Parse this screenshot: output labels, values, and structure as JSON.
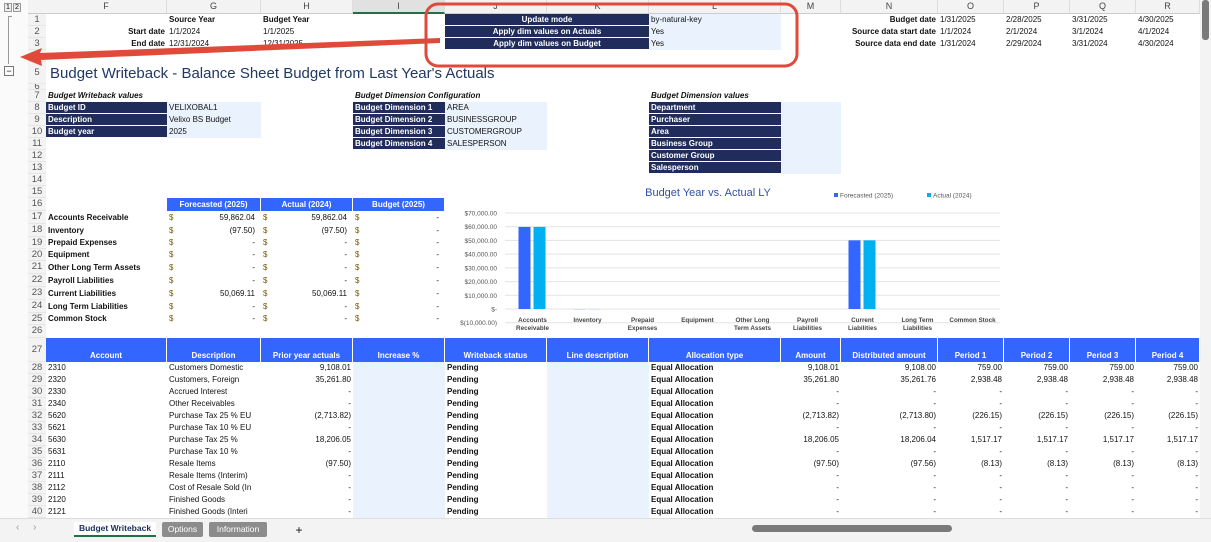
{
  "columns": [
    "F",
    "G",
    "H",
    "I",
    "J",
    "K",
    "L",
    "M",
    "N",
    "O",
    "P",
    "Q",
    "R"
  ],
  "outline": {
    "levels": [
      "1",
      "2"
    ],
    "collapse": "−"
  },
  "dates": {
    "source_year_label": "Source Year",
    "budget_year_label": "Budget Year",
    "start_label": "Start date",
    "end_label": "End date",
    "source_start": "1/1/2024",
    "budget_start": "1/1/2025",
    "source_end": "12/31/2024",
    "budget_end": "12/31/2025"
  },
  "settings": [
    {
      "label": "Update mode",
      "value": "by-natural-key"
    },
    {
      "label": "Apply dim values on Actuals",
      "value": "Yes"
    },
    {
      "label": "Apply dim values on Budget",
      "value": "Yes"
    }
  ],
  "periods": {
    "labels": [
      "Budget date",
      "Source data start date",
      "Source data end date"
    ],
    "values": [
      [
        "1/31/2025",
        "2/28/2025",
        "3/31/2025",
        "4/30/2025"
      ],
      [
        "1/1/2024",
        "2/1/2024",
        "3/1/2024",
        "4/1/2024"
      ],
      [
        "1/31/2024",
        "2/29/2024",
        "3/31/2024",
        "4/30/2024"
      ]
    ]
  },
  "page_title": "Budget Writeback - Balance Sheet Budget from Last Year's Actuals",
  "writeback_values": {
    "heading": "Budget Writeback values",
    "items": [
      {
        "label": "Budget ID",
        "value": "VELIXOBAL1"
      },
      {
        "label": "Description",
        "value": "Velixo BS Budget"
      },
      {
        "label": "Budget year",
        "value": "2025"
      }
    ]
  },
  "dimension_config": {
    "heading": "Budget Dimension Configuration",
    "items": [
      {
        "label": "Budget Dimension 1",
        "value": "AREA"
      },
      {
        "label": "Budget Dimension 2",
        "value": "BUSINESSGROUP"
      },
      {
        "label": "Budget Dimension 3",
        "value": "CUSTOMERGROUP"
      },
      {
        "label": "Budget Dimension 4",
        "value": "SALESPERSON"
      }
    ]
  },
  "dimension_values": {
    "heading": "Budget Dimension values",
    "items": [
      {
        "label": "Department",
        "value": ""
      },
      {
        "label": "Purchaser",
        "value": ""
      },
      {
        "label": "Area",
        "value": ""
      },
      {
        "label": "Business Group",
        "value": ""
      },
      {
        "label": "Customer Group",
        "value": ""
      },
      {
        "label": "Salesperson",
        "value": ""
      }
    ]
  },
  "summary": {
    "headers": [
      "Forecasted (2025)",
      "Actual (2024)",
      "Budget (2025)"
    ],
    "currency": "$",
    "rows": [
      {
        "label": "Accounts Receivable",
        "values": [
          "59,862.04",
          "59,862.04",
          "-"
        ]
      },
      {
        "label": "Inventory",
        "values": [
          "(97.50)",
          "(97.50)",
          "-"
        ]
      },
      {
        "label": "Prepaid Expenses",
        "values": [
          "-",
          "-",
          "-"
        ]
      },
      {
        "label": "Equipment",
        "values": [
          "-",
          "-",
          "-"
        ]
      },
      {
        "label": "Other Long Term Assets",
        "values": [
          "-",
          "-",
          "-"
        ]
      },
      {
        "label": "Payroll Liabilities",
        "values": [
          "-",
          "-",
          "-"
        ]
      },
      {
        "label": "Current Liabilities",
        "values": [
          "50,069.11",
          "50,069.11",
          "-"
        ]
      },
      {
        "label": "Long Term Liabilities",
        "values": [
          "-",
          "-",
          "-"
        ]
      },
      {
        "label": "Common Stock",
        "values": [
          "-",
          "-",
          "-"
        ]
      }
    ]
  },
  "chart_data": {
    "type": "bar",
    "title": "Budget Year vs. Actual LY",
    "categories": [
      [
        "Accounts",
        "Receivable"
      ],
      [
        "Inventory"
      ],
      [
        "Prepaid",
        "Expenses"
      ],
      [
        "Equipment"
      ],
      [
        "Other Long",
        "Term Assets"
      ],
      [
        "Payroll",
        "Liabilities"
      ],
      [
        "Current",
        "Liabilities"
      ],
      [
        "Long Term",
        "Liabilities"
      ],
      [
        "Common Stock"
      ]
    ],
    "series": [
      {
        "name": "Forecasted (2025)",
        "color": "#3366ff",
        "values": [
          59862.04,
          -97.5,
          0,
          0,
          0,
          0,
          50069.11,
          0,
          0
        ]
      },
      {
        "name": "Actual (2024)",
        "color": "#00b0f0",
        "values": [
          59862.04,
          -97.5,
          0,
          0,
          0,
          0,
          50069.11,
          0,
          0
        ]
      }
    ],
    "ylim": [
      -10000,
      70000
    ],
    "ytick_labels": [
      "$70,000.00",
      "$60,000.00",
      "$50,000.00",
      "$40,000.00",
      "$30,000.00",
      "$20,000.00",
      "$10,000.00",
      "$-",
      "$(10,000.00)"
    ],
    "grid": true,
    "legend": "top-right"
  },
  "main_table": {
    "headers": [
      "Account",
      "Description",
      "Prior year actuals",
      "Increase %",
      "Writeback status",
      "Line description",
      "Allocation type",
      "Amount",
      "Distributed amount",
      "Period 1",
      "Period 2",
      "Period 3",
      "Period 4"
    ],
    "rows": [
      [
        "2310",
        "Customers Domestic",
        "9,108.01",
        "",
        "Pending",
        "",
        "Equal Allocation",
        "9,108.01",
        "9,108.00",
        "759.00",
        "759.00",
        "759.00",
        "759.00"
      ],
      [
        "2320",
        "Customers, Foreign",
        "35,261.80",
        "",
        "Pending",
        "",
        "Equal Allocation",
        "35,261.80",
        "35,261.76",
        "2,938.48",
        "2,938.48",
        "2,938.48",
        "2,938.48"
      ],
      [
        "2330",
        "Accrued Interest",
        "-",
        "",
        "Pending",
        "",
        "Equal Allocation",
        "-",
        "-",
        "-",
        "-",
        "-",
        "-"
      ],
      [
        "2340",
        "Other Receivables",
        "-",
        "",
        "Pending",
        "",
        "Equal Allocation",
        "-",
        "-",
        "-",
        "-",
        "-",
        "-"
      ],
      [
        "5620",
        "Purchase Tax 25 % EU",
        "(2,713.82)",
        "",
        "Pending",
        "",
        "Equal Allocation",
        "(2,713.82)",
        "(2,713.80)",
        "(226.15)",
        "(226.15)",
        "(226.15)",
        "(226.15)"
      ],
      [
        "5621",
        "Purchase Tax 10 % EU",
        "-",
        "",
        "Pending",
        "",
        "Equal Allocation",
        "-",
        "-",
        "-",
        "-",
        "-",
        "-"
      ],
      [
        "5630",
        "Purchase Tax 25 %",
        "18,206.05",
        "",
        "Pending",
        "",
        "Equal Allocation",
        "18,206.05",
        "18,206.04",
        "1,517.17",
        "1,517.17",
        "1,517.17",
        "1,517.17"
      ],
      [
        "5631",
        "Purchase Tax 10 %",
        "-",
        "",
        "Pending",
        "",
        "Equal Allocation",
        "-",
        "-",
        "-",
        "-",
        "-",
        "-"
      ],
      [
        "2110",
        "Resale Items",
        "(97.50)",
        "",
        "Pending",
        "",
        "Equal Allocation",
        "(97.50)",
        "(97.56)",
        "(8.13)",
        "(8.13)",
        "(8.13)",
        "(8.13)"
      ],
      [
        "2111",
        "Resale Items (Interim)",
        "-",
        "",
        "Pending",
        "",
        "Equal Allocation",
        "-",
        "-",
        "-",
        "-",
        "-",
        "-"
      ],
      [
        "2112",
        "Cost of Resale Sold (In",
        "-",
        "",
        "Pending",
        "",
        "Equal Allocation",
        "-",
        "-",
        "-",
        "-",
        "-",
        "-"
      ],
      [
        "2120",
        "Finished Goods",
        "-",
        "",
        "Pending",
        "",
        "Equal Allocation",
        "-",
        "-",
        "-",
        "-",
        "-",
        "-"
      ],
      [
        "2121",
        "Finished Goods (Interi",
        "-",
        "",
        "Pending",
        "",
        "Equal Allocation",
        "-",
        "-",
        "-",
        "-",
        "-",
        "-"
      ]
    ]
  },
  "sheet_tabs": [
    {
      "label": "Budget Writeback",
      "active": true
    },
    {
      "label": "Options",
      "active": false
    },
    {
      "label": "Information",
      "active": false
    }
  ],
  "add_sheet": "+",
  "annotation_color": "#e04a3a"
}
